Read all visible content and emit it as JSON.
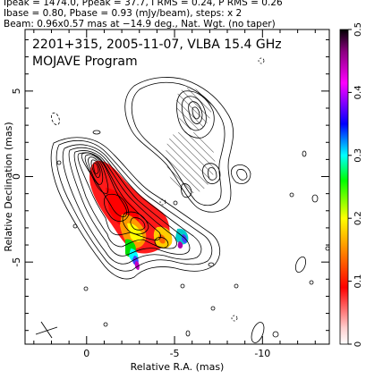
{
  "header": {
    "line1": "Ipeak = 1474.0, Ppeak = 37.7, I RMS = 0.24, P RMS = 0.26",
    "line2": "Ibase = 0.80, Pbase = 0.93 (mJy/beam), steps: x 2",
    "line3": "Beam: 0.96x0.57 mas at −14.9 deg., Nat. Wgt. (no taper)"
  },
  "plot_title": {
    "line1": "2201+315, 2005-11-07, VLBA 15.4 GHz",
    "line2": "MOJAVE Program"
  },
  "colors": {
    "contour": "#000000",
    "colorbar_stops": [
      "#ffffff",
      "#ff0000",
      "#ff8c00",
      "#ffff00",
      "#00ff00",
      "#00ffff",
      "#0000ff",
      "#ff00ff",
      "#000000"
    ]
  },
  "chart_data": {
    "type": "heatmap",
    "xlabel": "Relative R.A. (mas)",
    "ylabel": "Relative Declination (mas)",
    "xlim": [
      3.5,
      -13.8
    ],
    "ylim": [
      -9.8,
      8.6
    ],
    "x_ticks": [
      0,
      -5,
      -10
    ],
    "x_tick_labels": [
      "0",
      "-5",
      "-10"
    ],
    "y_ticks": [
      5,
      0,
      -5
    ],
    "y_tick_labels": [
      "5",
      "0",
      "-5"
    ],
    "colorbar": {
      "label_values": [
        0,
        0.1,
        0.2,
        0.3,
        0.4,
        0.5
      ],
      "labels": [
        "0",
        "0.1",
        "0.2",
        "0.3",
        "0.4",
        "0.5"
      ],
      "range": [
        0,
        0.5
      ]
    },
    "stokes_i_contours_peak_mJy_per_beam": 1474.0,
    "base_contour_mJy_per_beam": 0.8,
    "contour_step_factor": 2,
    "beam": {
      "major_mas": 0.96,
      "minor_mas": 0.57,
      "pa_deg": -14.9
    }
  }
}
